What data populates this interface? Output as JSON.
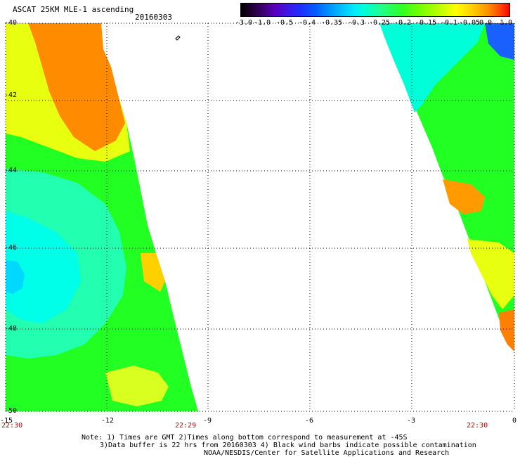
{
  "title": "ASCAT 25KM MLE-1 ascending",
  "date": "20160303",
  "colorbar": {
    "labels": [
      "-3.0",
      "-1.0",
      "-0.5",
      "-0.4",
      "-0.35",
      "-0.3",
      "-0.25",
      "-0.2",
      "-0.15",
      "-0.1",
      "-0.05",
      "0.0",
      "1.0"
    ]
  },
  "axes": {
    "x_ticks": [
      "-15",
      "-12",
      "-9",
      "-6",
      "-3",
      "0"
    ],
    "y_ticks": [
      "-40",
      "-42",
      "-44",
      "-46",
      "-48",
      "-50"
    ],
    "time_labels": [
      "22:30",
      "22:29",
      "22:30"
    ]
  },
  "notes": {
    "line1": "Note: 1) Times are GMT 2)Times along bottom correspond to measurement at -45S",
    "line2": "3)Data buffer is 22 hrs from 20160303 4) Black wind barbs indicate possible contamination",
    "line3": "NOAA/NESDIS/Center for Satellite Applications and Research"
  },
  "colors": {
    "orange": "#ff8c00",
    "yellow": "#ffff00",
    "green": "#22ff22",
    "cyan": "#00ffe0",
    "blue": "#0060ff"
  }
}
